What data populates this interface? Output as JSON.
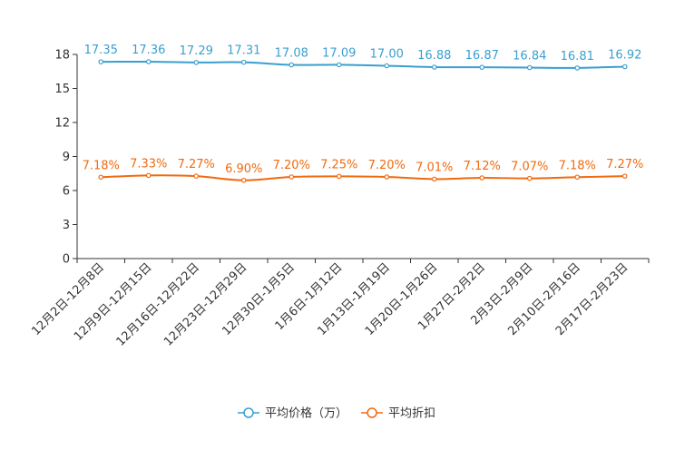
{
  "chart_data": {
    "type": "line",
    "categories": [
      "12月2日-12月8日",
      "12月9日-12月15日",
      "12月16日-12月22日",
      "12月23日-12月29日",
      "12月30日-1月5日",
      "1月6日-1月12日",
      "1月13日-1月19日",
      "1月20日-1月26日",
      "1月27日-2月2日",
      "2月3日-2月9日",
      "2月10日-2月16日",
      "2月17日-2月23日"
    ],
    "ylim": [
      0,
      18
    ],
    "yticks": [
      0,
      3,
      6,
      9,
      12,
      15,
      18
    ],
    "ytick_labels": [
      "0",
      "3",
      "6",
      "9",
      "12",
      "15",
      "18"
    ],
    "series": [
      {
        "name": "平均价格（万）",
        "color": "#3a9fd0",
        "values": [
          17.35,
          17.36,
          17.29,
          17.31,
          17.08,
          17.09,
          17.0,
          16.88,
          16.87,
          16.84,
          16.81,
          16.92
        ],
        "labels": [
          "17.35",
          "17.36",
          "17.29",
          "17.31",
          "17.08",
          "17.09",
          "17.00",
          "16.88",
          "16.87",
          "16.84",
          "16.81",
          "16.92"
        ]
      },
      {
        "name": "平均折扣",
        "color": "#f06a10",
        "values": [
          7.18,
          7.33,
          7.27,
          6.9,
          7.2,
          7.25,
          7.2,
          7.01,
          7.12,
          7.07,
          7.18,
          7.27
        ],
        "labels": [
          "7.18%",
          "7.33%",
          "7.27%",
          "6.90%",
          "7.20%",
          "7.25%",
          "7.20%",
          "7.01%",
          "7.12%",
          "7.07%",
          "7.18%",
          "7.27%"
        ]
      }
    ],
    "legend_position": "bottom-center",
    "title": "",
    "xlabel": "",
    "ylabel": ""
  }
}
